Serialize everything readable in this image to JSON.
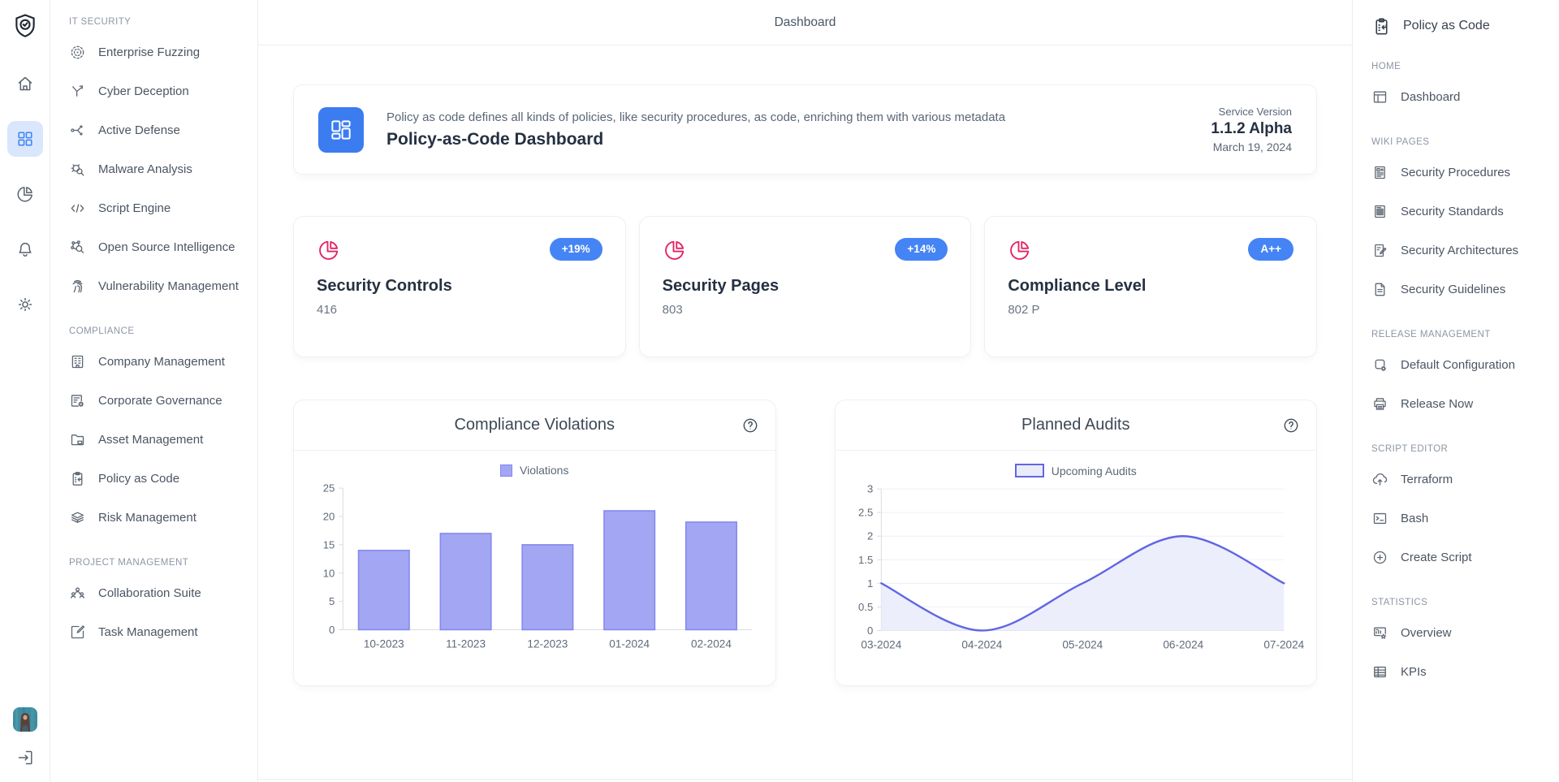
{
  "top_title": "Dashboard",
  "header_card": {
    "description": "Policy as code defines all kinds of policies, like security procedures, as code, enriching them with various metadata",
    "title": "Policy-as-Code Dashboard",
    "service_version_label": "Service Version",
    "version": "1.1.2 Alpha",
    "date": "March 19, 2024"
  },
  "stat_cards": [
    {
      "title": "Security Controls",
      "value": "416",
      "badge": "+19%"
    },
    {
      "title": "Security Pages",
      "value": "803",
      "badge": "+14%"
    },
    {
      "title": "Compliance Level",
      "value": "802 P",
      "badge": "A++"
    }
  ],
  "sidebar": {
    "sections": [
      {
        "label": "IT SECURITY",
        "items": [
          {
            "label": "Enterprise Fuzzing",
            "icon": "target"
          },
          {
            "label": "Cyber Deception",
            "icon": "branch"
          },
          {
            "label": "Active Defense",
            "icon": "flow"
          },
          {
            "label": "Malware Analysis",
            "icon": "bug-search"
          },
          {
            "label": "Script Engine",
            "icon": "code"
          },
          {
            "label": "Open Source Intelligence",
            "icon": "network-search"
          },
          {
            "label": "Vulnerability Management",
            "icon": "fingerprint"
          }
        ]
      },
      {
        "label": "COMPLIANCE",
        "items": [
          {
            "label": "Company Management",
            "icon": "building"
          },
          {
            "label": "Corporate Governance",
            "icon": "list-gear"
          },
          {
            "label": "Asset Management",
            "icon": "folder-box"
          },
          {
            "label": "Policy as Code",
            "icon": "clipboard-arrow"
          },
          {
            "label": "Risk Management",
            "icon": "layers-eye"
          }
        ]
      },
      {
        "label": "PROJECT MANAGEMENT",
        "items": [
          {
            "label": "Collaboration Suite",
            "icon": "people"
          },
          {
            "label": "Task Management",
            "icon": "edit-square"
          }
        ]
      }
    ]
  },
  "right_sidebar": {
    "title": "Policy as Code",
    "sections": [
      {
        "label": "HOME",
        "items": [
          {
            "label": "Dashboard",
            "icon": "window"
          }
        ]
      },
      {
        "label": "WIKI PAGES",
        "items": [
          {
            "label": "Security Procedures",
            "icon": "doc-report"
          },
          {
            "label": "Security Standards",
            "icon": "doc-grid"
          },
          {
            "label": "Security Architectures",
            "icon": "doc-edit"
          },
          {
            "label": "Security Guidelines",
            "icon": "doc"
          }
        ]
      },
      {
        "label": "RELEASE MANAGEMENT",
        "items": [
          {
            "label": "Default Configuration",
            "icon": "shape-gear"
          },
          {
            "label": "Release Now",
            "icon": "printer"
          }
        ]
      },
      {
        "label": "SCRIPT EDITOR",
        "items": [
          {
            "label": "Terraform",
            "icon": "cloud-up"
          },
          {
            "label": "Bash",
            "icon": "terminal"
          },
          {
            "label": "Create Script",
            "icon": "plus-circle"
          }
        ]
      },
      {
        "label": "STATISTICS",
        "items": [
          {
            "label": "Overview",
            "icon": "presentation-star"
          },
          {
            "label": "KPIs",
            "icon": "table"
          }
        ]
      }
    ]
  },
  "chart_data": [
    {
      "type": "bar",
      "title": "Compliance Violations",
      "legend": "Violations",
      "categories": [
        "10-2023",
        "11-2023",
        "12-2023",
        "01-2024",
        "02-2024"
      ],
      "values": [
        14,
        17,
        15,
        21,
        19
      ],
      "ylim": [
        0,
        25
      ],
      "ytick_step": 5,
      "grid": false,
      "legend_position": "top-center",
      "colors": {
        "fill": "#a3a6f3",
        "border": "#8287ee"
      }
    },
    {
      "type": "area",
      "title": "Planned Audits",
      "legend": "Upcoming Audits",
      "categories": [
        "03-2024",
        "04-2024",
        "05-2024",
        "06-2024",
        "07-2024"
      ],
      "values": [
        1,
        0,
        1,
        2,
        1
      ],
      "ylim": [
        0,
        3
      ],
      "ytick_step": 0.5,
      "grid": true,
      "legend_position": "top-center",
      "colors": {
        "line": "#6166e4",
        "fill": "#eceefb",
        "legend_fill": "#e9ebf9"
      }
    }
  ],
  "colors": {
    "accent_blue": "#4584f4",
    "tile_blue": "#3b7cf0",
    "pink": "#e52365",
    "active_nav_bg": "#d9e6fc",
    "active_nav_icon": "#3b82f6"
  }
}
